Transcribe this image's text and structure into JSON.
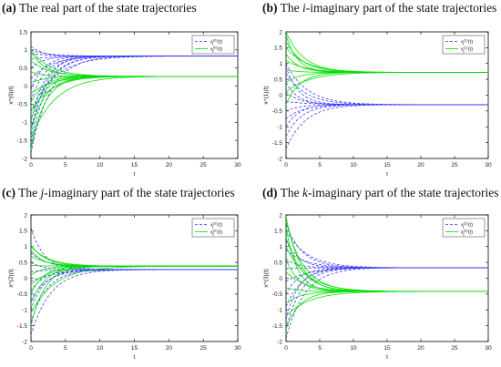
{
  "colors": {
    "x1": "#3333ff",
    "x2": "#00dd00",
    "axis": "#000000",
    "frame_bg": "#ffffff"
  },
  "chart_data": [
    {
      "type": "line",
      "caption": {
        "tag": "(a)",
        "pre": "The real part of the state trajectories",
        "italic": "",
        "post": ""
      },
      "xlabel": "t",
      "ylabel": "x^(0)(t)",
      "xlim": [
        0,
        30
      ],
      "ylim": [
        -2,
        1.5
      ],
      "xticks": [
        "0",
        "5",
        "10",
        "15",
        "20",
        "25",
        "30"
      ],
      "yticks": [
        "-2",
        "-1.5",
        "-1",
        "-0.5",
        "0",
        "0.5",
        "1",
        "1.5"
      ],
      "legend": {
        "placement": "top-right",
        "entries": [
          {
            "series": "x1",
            "label_base": "x",
            "label_sub": "1",
            "label_sup": "(0)",
            "label_tail": "(t)"
          },
          {
            "series": "x2",
            "label_base": "x",
            "label_sub": "2",
            "label_sup": "(0)",
            "label_tail": "(t)"
          }
        ]
      },
      "series": [
        {
          "name": "x1^(0)(t)",
          "style": "dashed",
          "steady": 0.83,
          "initials": [
            -1.85,
            -1.65,
            -1.45,
            -1.2,
            -1.0,
            -0.7,
            -0.4,
            -0.1,
            0.2,
            0.5,
            0.75,
            1.0,
            1.1,
            0.9
          ]
        },
        {
          "name": "x2^(0)(t)",
          "style": "solid",
          "steady": 0.27,
          "initials": [
            -1.75,
            -1.45,
            -1.2,
            -0.95,
            -0.7,
            -0.45,
            -0.2,
            0.1,
            0.4,
            0.7,
            0.95,
            1.0
          ]
        }
      ]
    },
    {
      "type": "line",
      "caption": {
        "tag": "(b)",
        "pre": "The ",
        "italic": "i",
        "post": "-imaginary part of the state trajectories"
      },
      "xlabel": "t",
      "ylabel": "x^(1)(t)",
      "xlim": [
        0,
        30
      ],
      "ylim": [
        -2,
        2
      ],
      "xticks": [
        "0",
        "5",
        "10",
        "15",
        "20",
        "25",
        "30"
      ],
      "yticks": [
        "-2",
        "-1.5",
        "-1",
        "-0.5",
        "0",
        "0.5",
        "1",
        "1.5",
        "2"
      ],
      "legend": {
        "placement": "top-right",
        "entries": [
          {
            "series": "x1",
            "label_base": "x",
            "label_sub": "1",
            "label_sup": "(1)",
            "label_tail": "(t)"
          },
          {
            "series": "x2",
            "label_base": "x",
            "label_sub": "2",
            "label_sup": "(1)",
            "label_tail": "(t)"
          }
        ]
      },
      "series": [
        {
          "name": "x1^(1)(t)",
          "style": "dashed",
          "steady": -0.3,
          "initials": [
            -1.7,
            -1.3,
            -1.0,
            -0.75,
            -0.5,
            -0.2,
            0.1,
            0.4,
            0.7,
            0.9,
            1.0
          ]
        },
        {
          "name": "x2^(1)(t)",
          "style": "solid",
          "steady": 0.72,
          "initials": [
            -0.3,
            0.1,
            0.4,
            0.8,
            1.1,
            1.3,
            1.5,
            1.7,
            1.9,
            2.0
          ]
        }
      ]
    },
    {
      "type": "line",
      "caption": {
        "tag": "(c)",
        "pre": "The ",
        "italic": "j",
        "post": "-imaginary part of the state trajectories"
      },
      "xlabel": "t",
      "ylabel": "x^(2)(t)",
      "xlim": [
        0,
        30
      ],
      "ylim": [
        -2,
        2
      ],
      "xticks": [
        "0",
        "5",
        "10",
        "15",
        "20",
        "25",
        "30"
      ],
      "yticks": [
        "-2",
        "-1.5",
        "-1",
        "-0.5",
        "0",
        "0.5",
        "1",
        "1.5",
        "2"
      ],
      "legend": {
        "placement": "top-right",
        "entries": [
          {
            "series": "x1",
            "label_base": "x",
            "label_sub": "1",
            "label_sup": "(2)",
            "label_tail": "(t)"
          },
          {
            "series": "x2",
            "label_base": "x",
            "label_sub": "2",
            "label_sup": "(2)",
            "label_tail": "(t)"
          }
        ]
      },
      "series": [
        {
          "name": "x1^(2)(t)",
          "style": "dashed",
          "steady": 0.27,
          "initials": [
            -1.8,
            -1.4,
            -1.0,
            -0.7,
            -0.4,
            -0.1,
            0.2,
            0.5,
            0.8,
            1.6
          ]
        },
        {
          "name": "x2^(2)(t)",
          "style": "solid",
          "steady": 0.38,
          "initials": [
            -1.5,
            -1.1,
            -0.8,
            -0.5,
            -0.2,
            0.1,
            0.4,
            0.7,
            0.9,
            1.0,
            1.05
          ]
        }
      ]
    },
    {
      "type": "line",
      "caption": {
        "tag": "(d)",
        "pre": "The ",
        "italic": "k",
        "post": "-imaginary part of the state trajectories"
      },
      "xlabel": "t",
      "ylabel": "x^(3)(t)",
      "xlim": [
        0,
        30
      ],
      "ylim": [
        -2,
        2
      ],
      "xticks": [
        "0",
        "5",
        "10",
        "15",
        "20",
        "25",
        "30"
      ],
      "yticks": [
        "-2",
        "-1.5",
        "-1",
        "-0.5",
        "0",
        "0.5",
        "1",
        "1.5",
        "2"
      ],
      "legend": {
        "placement": "top-right",
        "entries": [
          {
            "series": "x1",
            "label_base": "x",
            "label_sub": "1",
            "label_sup": "(3)",
            "label_tail": "(t)"
          },
          {
            "series": "x2",
            "label_base": "x",
            "label_sub": "2",
            "label_sup": "(3)",
            "label_tail": "(t)"
          }
        ]
      },
      "series": [
        {
          "name": "x1^(3)(t)",
          "style": "dashed",
          "steady": 0.33,
          "initials": [
            -1.9,
            -1.6,
            -1.3,
            -0.9,
            -0.5,
            -0.1,
            0.3,
            0.6,
            0.9,
            1.2,
            1.5,
            1.7
          ]
        },
        {
          "name": "x2^(3)(t)",
          "style": "solid",
          "steady": -0.42,
          "initials": [
            -1.6,
            -1.2,
            -0.8,
            -0.3,
            0.2,
            0.6,
            1.0,
            1.3,
            1.6,
            1.8,
            1.95
          ]
        }
      ]
    }
  ]
}
